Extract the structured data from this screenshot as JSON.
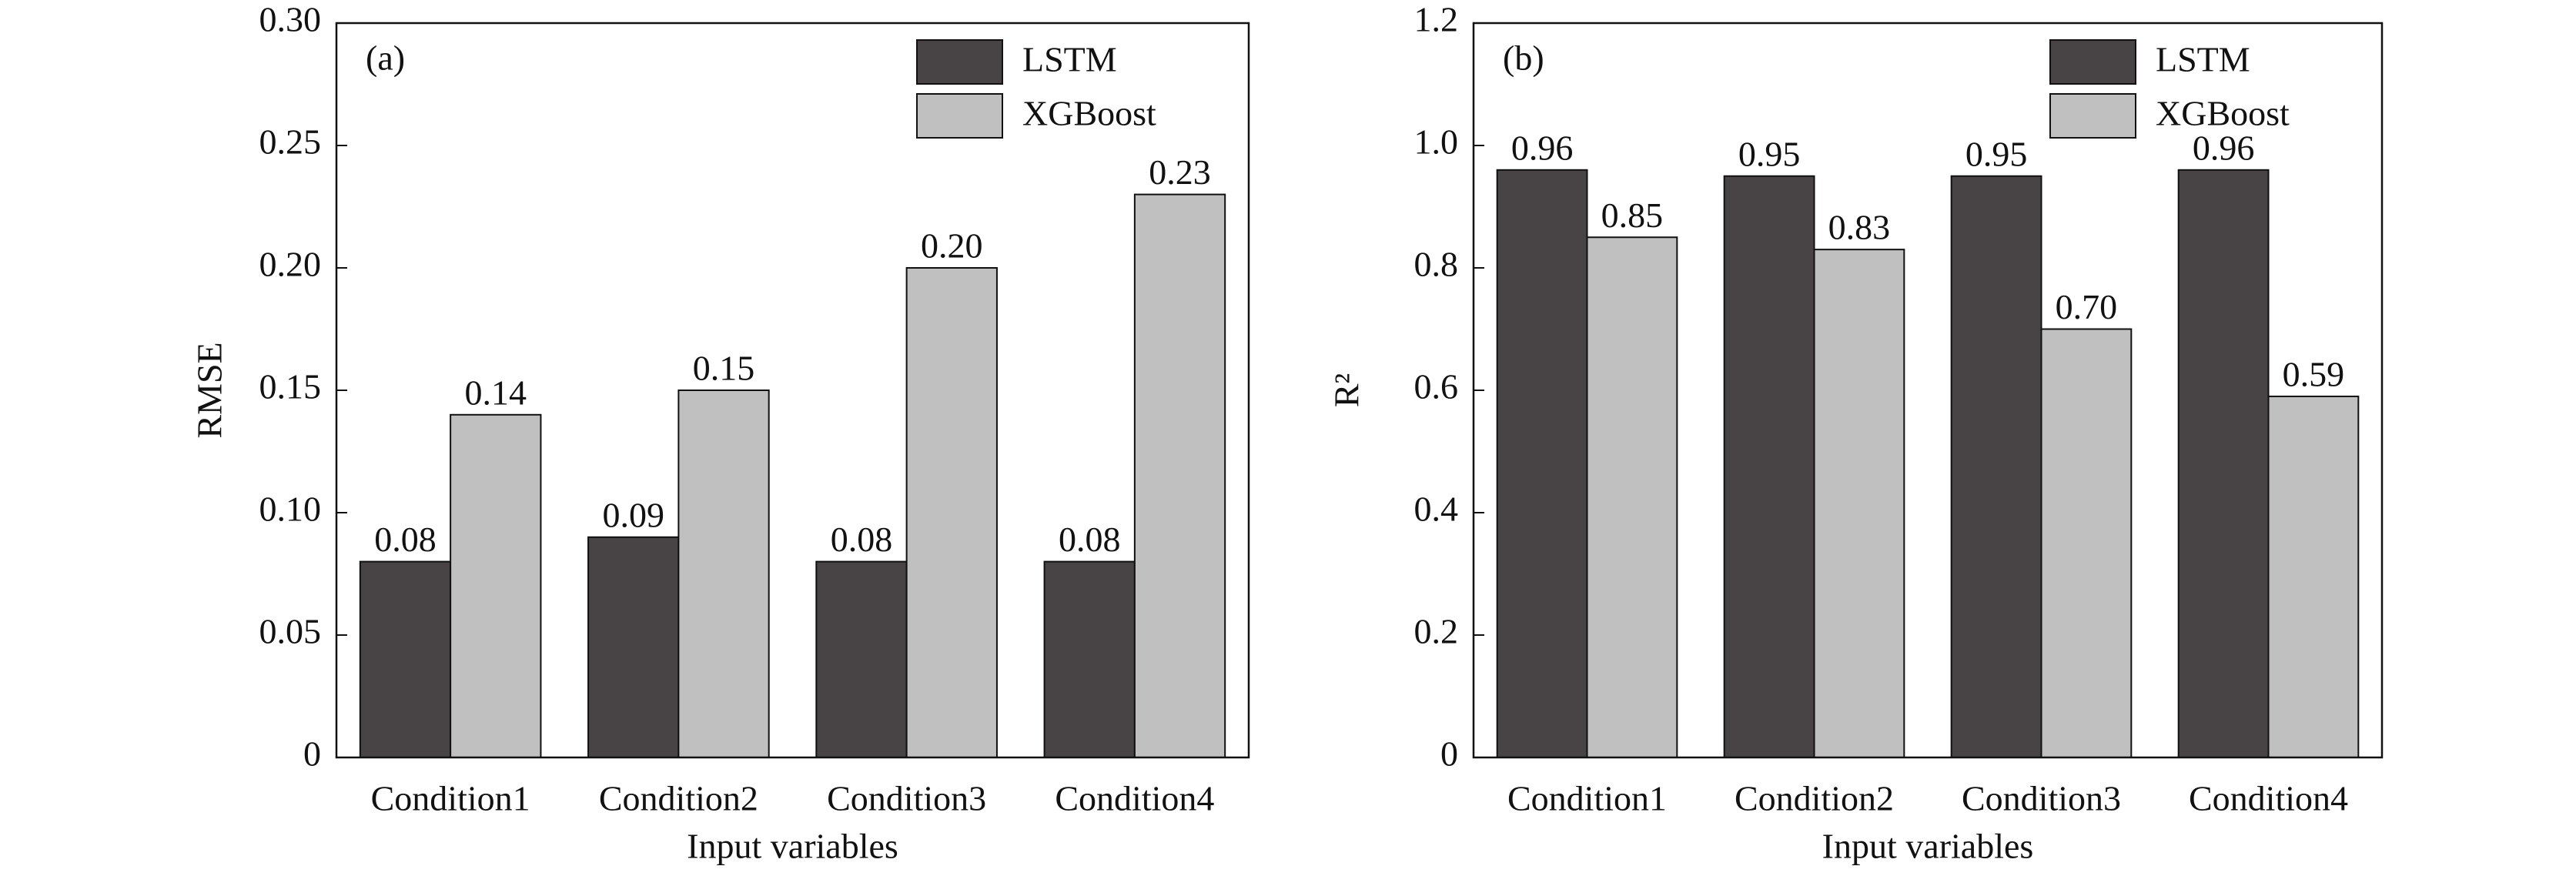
{
  "chart_data": [
    {
      "type": "bar",
      "panel_label": "(a)",
      "xlabel": "Input variables",
      "ylabel": "RMSE",
      "categories": [
        "Condition1",
        "Condition2",
        "Condition3",
        "Condition4"
      ],
      "series": [
        {
          "name": "LSTM",
          "color": "#484446",
          "values": [
            0.08,
            0.09,
            0.08,
            0.08
          ],
          "value_labels": [
            "0.08",
            "0.09",
            "0.08",
            "0.08"
          ]
        },
        {
          "name": "XGBoost",
          "color": "#c0c0c0",
          "values": [
            0.14,
            0.15,
            0.2,
            0.23
          ],
          "value_labels": [
            "0.14",
            "0.15",
            "0.20",
            "0.23"
          ]
        }
      ],
      "ylim": [
        0,
        0.3
      ],
      "yticks": [
        0,
        0.05,
        {
          "value": 0.1,
          "label": "0.10"
        },
        0.15,
        {
          "value": 0.2,
          "label": "0.20"
        },
        0.25,
        {
          "value": 0.3,
          "label": "0.30"
        }
      ],
      "legend": "upper right"
    },
    {
      "type": "bar",
      "panel_label": "(b)",
      "xlabel": "Input variables",
      "ylabel": "R²",
      "categories": [
        "Condition1",
        "Condition2",
        "Condition3",
        "Condition4"
      ],
      "series": [
        {
          "name": "LSTM",
          "color": "#484446",
          "values": [
            0.96,
            0.95,
            0.95,
            0.96
          ],
          "value_labels": [
            "0.96",
            "0.95",
            "0.95",
            "0.96"
          ]
        },
        {
          "name": "XGBoost",
          "color": "#c0c0c0",
          "values": [
            0.85,
            0.83,
            0.7,
            0.59
          ],
          "value_labels": [
            "0.85",
            "0.83",
            "0.70",
            "0.59"
          ]
        }
      ],
      "ylim": [
        0,
        1.2
      ],
      "yticks": [
        0,
        0.2,
        0.4,
        0.6,
        0.8,
        {
          "value": 1,
          "label": "1.0"
        },
        1.2
      ],
      "legend": "upper right"
    }
  ]
}
